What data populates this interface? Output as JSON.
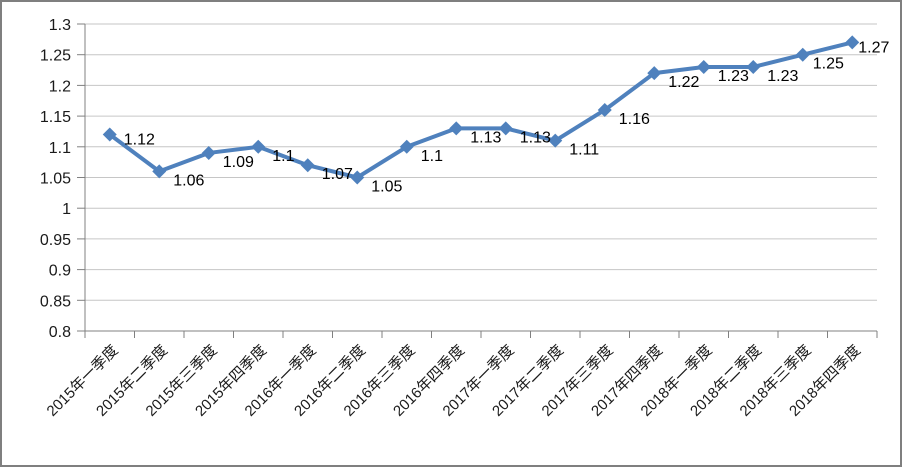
{
  "chart_data": {
    "type": "line",
    "title": "",
    "xlabel": "",
    "ylabel": "",
    "categories": [
      "2015年一季度",
      "2015年二季度",
      "2015年三季度",
      "2015年四季度",
      "2016年一季度",
      "2016年二季度",
      "2016年三季度",
      "2016年四季度",
      "2017年一季度",
      "2017年二季度",
      "2017年三季度",
      "2017年四季度",
      "2018年一季度",
      "2018年二季度",
      "2018年三季度",
      "2018年四季度"
    ],
    "series": [
      {
        "name": "",
        "values": [
          1.12,
          1.06,
          1.09,
          1.1,
          1.07,
          1.05,
          1.1,
          1.13,
          1.13,
          1.11,
          1.16,
          1.22,
          1.23,
          1.23,
          1.25,
          1.27
        ],
        "data_labels": [
          "1.12",
          "1.06",
          "1.09",
          "1.1",
          "1.07",
          "1.05",
          "1.1",
          "1.13",
          "1.13",
          "1.11",
          "1.16",
          "1.22",
          "1.23",
          "1.23",
          "1.25",
          "1.27"
        ]
      }
    ],
    "ylim": [
      0.8,
      1.3
    ],
    "y_tick_values": [
      1.3,
      1.25,
      1.2,
      1.15,
      1.1,
      1.05,
      1.0,
      0.95,
      0.9,
      0.85,
      0.8
    ],
    "y_tick_labels": [
      "1.3",
      "1.25",
      "1.2",
      "1.15",
      "1.1",
      "1.05",
      "1",
      "0.95",
      "0.9",
      "0.85",
      "0.8"
    ],
    "grid": true,
    "legend_position": "none",
    "marker": "diamond",
    "colors": {
      "series": "#4F81BD",
      "data_label_text": "#000000",
      "axis_text": "#1a1a1a",
      "gridline": "#C6C6C6",
      "axis_line": "#808080",
      "background": "#FFFFFF",
      "frame_border": "#7F7F7F"
    }
  }
}
